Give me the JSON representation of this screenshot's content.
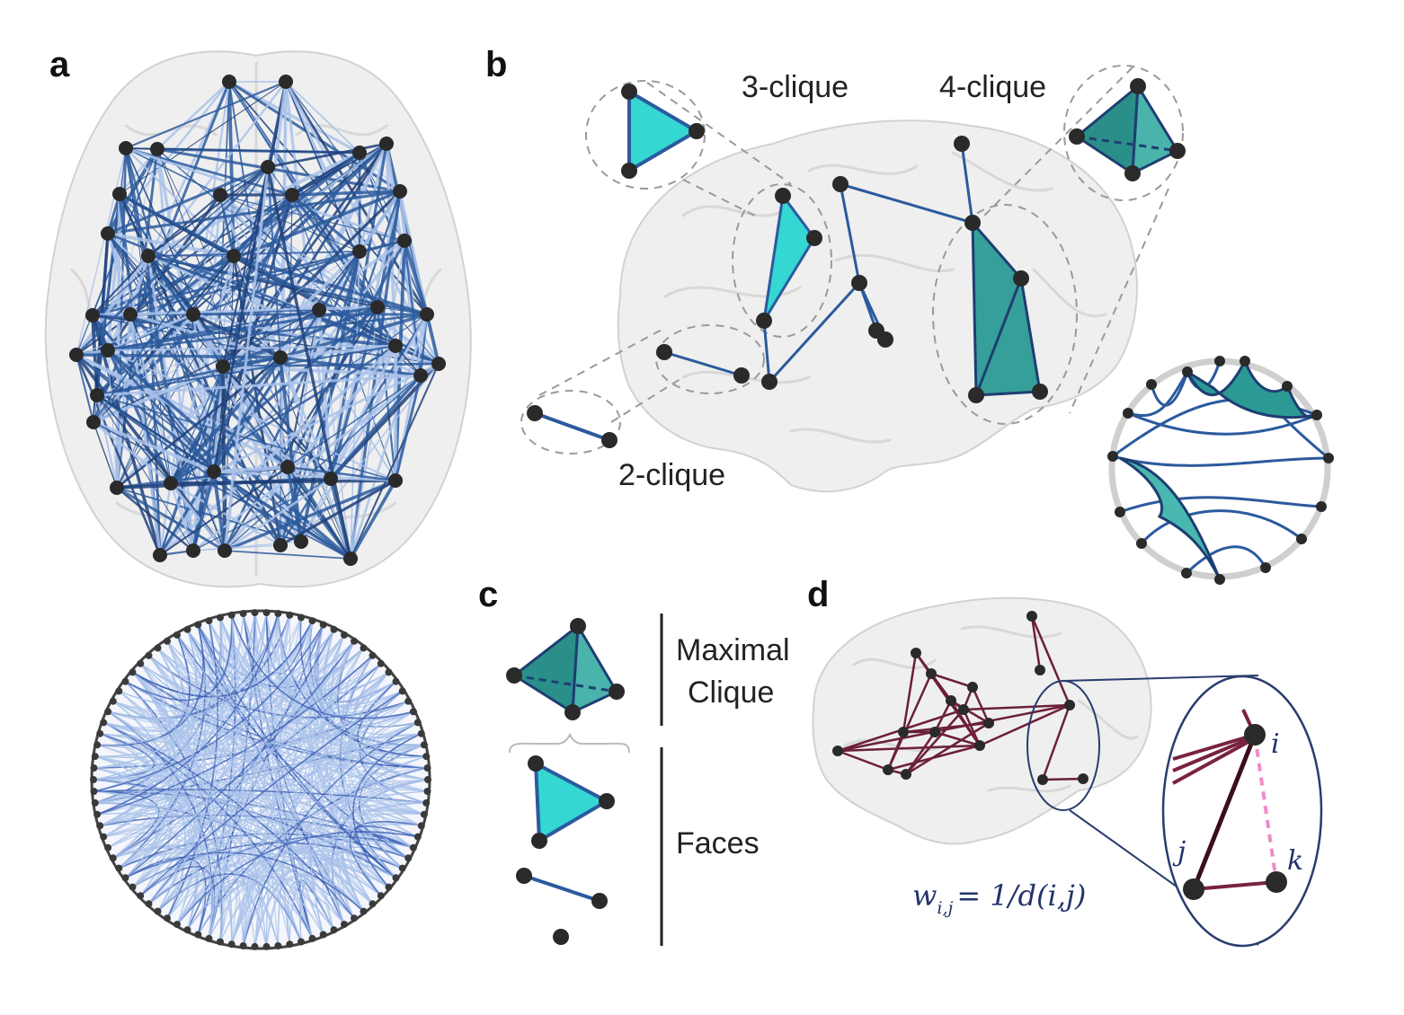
{
  "panels": {
    "a": {
      "label": "a"
    },
    "b": {
      "label": "b",
      "clique_labels": {
        "three": "3-clique",
        "four": "4-clique",
        "two": "2-clique"
      }
    },
    "c": {
      "label": "c",
      "maximal_line1": "Maximal",
      "maximal_line2": "Clique",
      "faces": "Faces"
    },
    "d": {
      "label": "d",
      "weight_w": "w",
      "weight_sub": "i,j",
      "weight_rest": "= 1/d(i,j)",
      "node_i": "i",
      "node_j": "j",
      "node_k": "k"
    }
  },
  "colors": {
    "blue_edge": "#2b5a9e",
    "dark_blue_edge": "#1f3f78",
    "light_blue_edge": "#a9c2ea",
    "cyan_face": "#34d7d2",
    "teal_face": "#2b9a94",
    "teal_face_light": "#48b8b0",
    "maroon_edge": "#6b1f3a",
    "pink_dash": "#f08bc8",
    "node": "#2a2a2a",
    "brain_fill": "#e9e9e9"
  },
  "icons": {
    "brain_outline": "brain-icon",
    "node": "node-icon"
  }
}
